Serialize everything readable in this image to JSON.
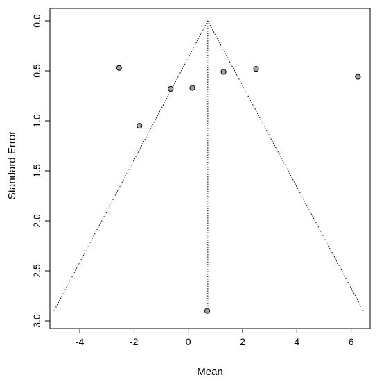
{
  "chart_data": {
    "type": "scatter",
    "title": "",
    "xlabel": "Mean",
    "ylabel": "Standard Error",
    "xlim": [
      -5.1,
      6.7
    ],
    "ylim": [
      0.0,
      3.0
    ],
    "y_reversed": true,
    "x_ticks": [
      "-4",
      "-2",
      "0",
      "2",
      "4",
      "6"
    ],
    "x_tick_values": [
      -4,
      -2,
      0,
      2,
      4,
      6
    ],
    "y_ticks": [
      "0.0",
      "0.5",
      "1.0",
      "1.5",
      "2.0",
      "2.5",
      "3.0"
    ],
    "y_tick_values": [
      0.0,
      0.5,
      1.0,
      1.5,
      2.0,
      2.5,
      3.0
    ],
    "grid": false,
    "points": [
      {
        "x": -2.55,
        "y": 0.47
      },
      {
        "x": -0.65,
        "y": 0.68
      },
      {
        "x": 0.15,
        "y": 0.67
      },
      {
        "x": 1.3,
        "y": 0.51
      },
      {
        "x": 2.5,
        "y": 0.48
      },
      {
        "x": 6.25,
        "y": 0.56
      },
      {
        "x": -1.8,
        "y": 1.05
      },
      {
        "x": 0.7,
        "y": 2.9
      }
    ],
    "funnel": {
      "center": 0.72,
      "apex_se": 0.0,
      "base_se": 2.9,
      "base_left": -4.95,
      "base_right": 6.45
    },
    "colors": {
      "point_fill": "#a0a0a0",
      "point_stroke": "#000000",
      "line": "#000000"
    }
  }
}
